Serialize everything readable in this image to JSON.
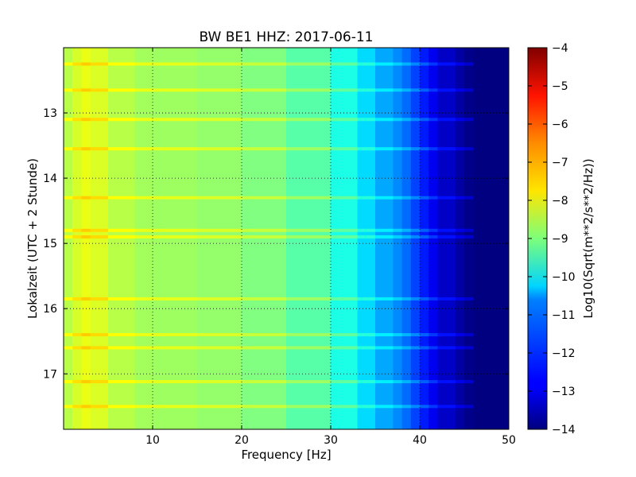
{
  "chart_data": {
    "type": "heatmap",
    "title": "BW BE1 HHZ: 2017-06-11",
    "xlabel": "Frequency [Hz]",
    "ylabel": "Lokalzeit (UTC + 2 Stunde)",
    "xlim": [
      0,
      50
    ],
    "ylim": [
      12.0,
      17.85
    ],
    "x_ticks": [
      10,
      20,
      30,
      40,
      50
    ],
    "y_ticks": [
      13,
      14,
      15,
      16,
      17
    ],
    "grid": true,
    "colorbar": {
      "label": "Log10(Sqrt(m**2/s**2/Hz))",
      "min": -14,
      "max": -4,
      "ticks": [
        -4,
        -5,
        -6,
        -7,
        -8,
        -9,
        -10,
        -11,
        -12,
        -13,
        -14
      ],
      "colormap": "jet"
    },
    "spectrum_profile": {
      "frequency_hz": [
        0,
        1,
        2,
        3,
        5,
        8,
        10,
        15,
        20,
        25,
        30,
        33,
        35,
        37,
        38,
        39,
        40,
        41,
        42,
        44,
        45,
        46,
        48,
        50
      ],
      "log10_amplitude": [
        -8.6,
        -8.3,
        -8.0,
        -7.9,
        -8.3,
        -8.6,
        -8.7,
        -8.7,
        -8.9,
        -9.1,
        -9.7,
        -10.3,
        -10.9,
        -11.3,
        -11.5,
        -11.9,
        -12.3,
        -12.7,
        -13.1,
        -13.5,
        -13.8,
        -14.0,
        -14.0,
        -14.0
      ]
    },
    "noisy_hours": [
      12.25,
      12.65,
      13.1,
      13.55,
      14.3,
      14.8,
      14.9,
      15.85,
      16.4,
      16.6,
      17.12,
      17.5
    ],
    "annotations": []
  }
}
